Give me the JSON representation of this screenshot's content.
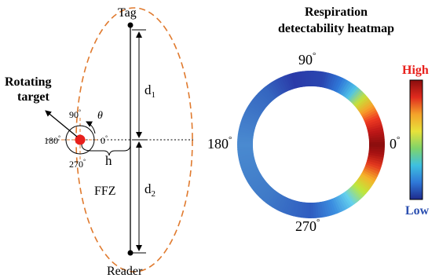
{
  "left_diagram": {
    "tag_label": "Tag",
    "reader_label": "Reader",
    "d1_label": "d",
    "d1_sub": "1",
    "d2_label": "d",
    "d2_sub": "2",
    "h_label": "h",
    "ffz_label": "FFZ",
    "target_label_line1": "Rotating",
    "target_label_line2": "target",
    "theta_label": "θ",
    "angles": {
      "a90": "90",
      "a180": "180",
      "a0": "0",
      "a270": "270",
      "degree_mark": "°"
    },
    "colors": {
      "ellipse": "#e07a2e",
      "target": "#e8201c",
      "lines": "#000000"
    }
  },
  "heatmap": {
    "title_line1": "Respiration",
    "title_line2": "detectability heatmap",
    "angle_labels": {
      "top": "90",
      "left": "180",
      "right": "0",
      "bottom": "270",
      "degree_mark": "°"
    },
    "ring_color_stops": [
      {
        "angle_deg": 0,
        "color": "#8a0d0d"
      },
      {
        "angle_deg": 12,
        "color": "#c01818"
      },
      {
        "angle_deg": 22,
        "color": "#ee3a22"
      },
      {
        "angle_deg": 32,
        "color": "#f8a02a"
      },
      {
        "angle_deg": 42,
        "color": "#c6e23a"
      },
      {
        "angle_deg": 52,
        "color": "#4fc3e8"
      },
      {
        "angle_deg": 65,
        "color": "#2f78d8"
      },
      {
        "angle_deg": 80,
        "color": "#2a46b0"
      },
      {
        "angle_deg": 105,
        "color": "#2a3aa8"
      },
      {
        "angle_deg": 130,
        "color": "#3566c0"
      },
      {
        "angle_deg": 180,
        "color": "#4a8ad0"
      },
      {
        "angle_deg": 230,
        "color": "#3f7ac8"
      },
      {
        "angle_deg": 270,
        "color": "#2f5cc0"
      },
      {
        "angle_deg": 290,
        "color": "#3c8ee0"
      },
      {
        "angle_deg": 305,
        "color": "#64d0ee"
      },
      {
        "angle_deg": 318,
        "color": "#bfe83a"
      },
      {
        "angle_deg": 330,
        "color": "#f6b22a"
      },
      {
        "angle_deg": 342,
        "color": "#e4381e"
      },
      {
        "angle_deg": 352,
        "color": "#a81212"
      },
      {
        "angle_deg": 360,
        "color": "#8a0d0d"
      }
    ],
    "colorbar": {
      "high_label": "High",
      "low_label": "Low",
      "high_color": "#e8201c",
      "low_color": "#2b4fb0",
      "stops": [
        "#8a0d0d",
        "#e02a1e",
        "#f4a22a",
        "#e8e23a",
        "#7fd46a",
        "#3ec0e0",
        "#2f78d8",
        "#1e2a8c"
      ]
    }
  }
}
